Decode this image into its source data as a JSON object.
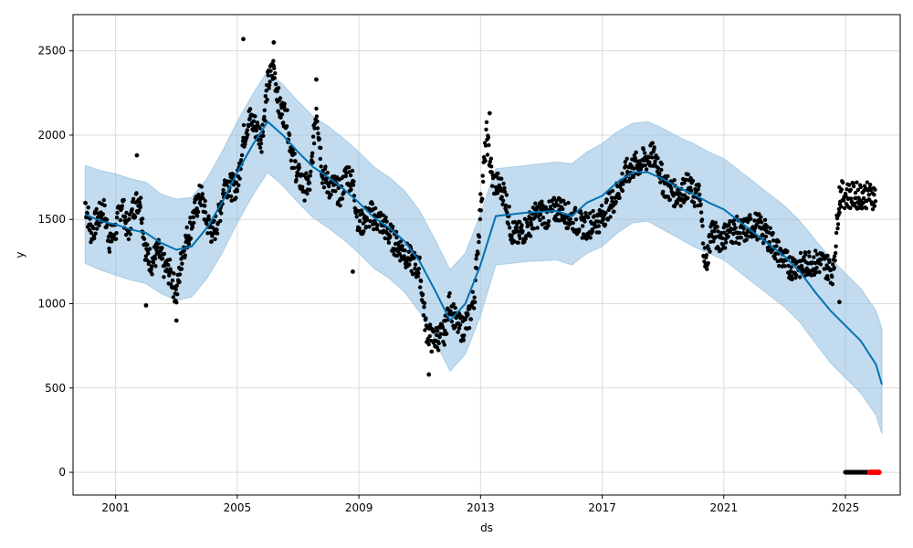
{
  "chart_data": {
    "type": "line",
    "title": "",
    "xlabel": "ds",
    "ylabel": "y",
    "xlim": [
      1999.6,
      2026.8
    ],
    "ylim": [
      -135,
      2715
    ],
    "x_ticks": [
      2001,
      2005,
      2009,
      2013,
      2017,
      2021,
      2025
    ],
    "x_tick_labels": [
      "2001",
      "2005",
      "2009",
      "2013",
      "2017",
      "2021",
      "2025"
    ],
    "y_ticks": [
      0,
      500,
      1000,
      1500,
      2000,
      2500
    ],
    "y_tick_labels": [
      "0",
      "500",
      "1000",
      "1500",
      "2000",
      "2500"
    ],
    "grid": true,
    "colors": {
      "observed": "#000000",
      "forecast_line": "#0072B2",
      "interval_fill": "#8FBEE0",
      "interval_edge": "#A8CDE6",
      "highlight": "#ff0000"
    },
    "forecast": {
      "x": [
        2000.0,
        2000.5,
        2001.0,
        2001.5,
        2002.0,
        2002.5,
        2003.0,
        2003.5,
        2004.0,
        2004.5,
        2005.0,
        2005.5,
        2006.0,
        2006.5,
        2007.0,
        2007.5,
        2008.0,
        2008.5,
        2009.0,
        2009.5,
        2010.0,
        2010.5,
        2011.0,
        2011.5,
        2012.0,
        2012.5,
        2013.0,
        2013.5,
        2014.0,
        2014.5,
        2015.0,
        2015.5,
        2016.0,
        2016.5,
        2017.0,
        2017.5,
        2018.0,
        2018.5,
        2019.0,
        2019.5,
        2020.0,
        2020.5,
        2021.0,
        2021.5,
        2022.0,
        2022.5,
        2023.0,
        2023.5,
        2024.0,
        2024.5,
        2025.0,
        2025.5,
        2026.0,
        2026.2
      ],
      "yhat": [
        1530,
        1490,
        1470,
        1440,
        1420,
        1360,
        1320,
        1340,
        1450,
        1600,
        1780,
        1940,
        2080,
        2000,
        1900,
        1810,
        1750,
        1680,
        1600,
        1510,
        1450,
        1370,
        1250,
        1080,
        900,
        1000,
        1230,
        1520,
        1530,
        1540,
        1545,
        1550,
        1520,
        1600,
        1640,
        1720,
        1780,
        1780,
        1740,
        1690,
        1650,
        1600,
        1560,
        1490,
        1420,
        1350,
        1280,
        1190,
        1070,
        960,
        870,
        780,
        640,
        520
      ],
      "upper": [
        1820,
        1790,
        1770,
        1740,
        1720,
        1650,
        1620,
        1630,
        1740,
        1900,
        2080,
        2240,
        2380,
        2300,
        2200,
        2110,
        2050,
        1980,
        1900,
        1810,
        1750,
        1670,
        1550,
        1380,
        1200,
        1300,
        1530,
        1800,
        1810,
        1820,
        1830,
        1840,
        1830,
        1900,
        1950,
        2020,
        2070,
        2080,
        2040,
        1990,
        1950,
        1900,
        1860,
        1790,
        1720,
        1650,
        1580,
        1490,
        1380,
        1270,
        1180,
        1090,
        960,
        850
      ],
      "lower": [
        1240,
        1200,
        1170,
        1140,
        1120,
        1060,
        1020,
        1040,
        1150,
        1300,
        1480,
        1640,
        1780,
        1700,
        1600,
        1510,
        1450,
        1380,
        1300,
        1210,
        1150,
        1070,
        950,
        780,
        600,
        700,
        930,
        1230,
        1240,
        1250,
        1255,
        1260,
        1230,
        1300,
        1340,
        1420,
        1480,
        1490,
        1440,
        1390,
        1340,
        1300,
        1260,
        1190,
        1120,
        1050,
        980,
        890,
        770,
        650,
        560,
        470,
        340,
        230
      ]
    },
    "observed": {
      "x": [
        2000.0,
        2000.2,
        2000.4,
        2000.6,
        2000.8,
        2001.0,
        2001.2,
        2001.4,
        2001.6,
        2001.8,
        2002.0,
        2002.2,
        2002.4,
        2002.6,
        2002.8,
        2003.0,
        2003.2,
        2003.4,
        2003.6,
        2003.8,
        2004.0,
        2004.2,
        2004.4,
        2004.6,
        2004.8,
        2005.0,
        2005.2,
        2005.4,
        2005.6,
        2005.8,
        2006.0,
        2006.2,
        2006.4,
        2006.6,
        2006.8,
        2007.0,
        2007.2,
        2007.4,
        2007.6,
        2007.8,
        2008.0,
        2008.2,
        2008.4,
        2008.6,
        2008.8,
        2009.0,
        2009.2,
        2009.4,
        2009.6,
        2009.8,
        2010.0,
        2010.2,
        2010.4,
        2010.6,
        2010.8,
        2011.0,
        2011.2,
        2011.4,
        2011.6,
        2011.8,
        2012.0,
        2012.2,
        2012.4,
        2012.6,
        2012.8,
        2013.0,
        2013.2,
        2013.4,
        2013.6,
        2013.8,
        2014.0,
        2014.2,
        2014.4,
        2014.6,
        2014.8,
        2015.0,
        2015.2,
        2015.4,
        2015.6,
        2015.8,
        2016.0,
        2016.2,
        2016.4,
        2016.6,
        2016.8,
        2017.0,
        2017.2,
        2017.4,
        2017.6,
        2017.8,
        2018.0,
        2018.2,
        2018.4,
        2018.6,
        2018.8,
        2019.0,
        2019.2,
        2019.4,
        2019.6,
        2019.8,
        2020.0,
        2020.2,
        2020.4,
        2020.6,
        2020.8,
        2021.0,
        2021.2,
        2021.4,
        2021.6,
        2021.8,
        2022.0,
        2022.2,
        2022.4,
        2022.6,
        2022.8,
        2023.0,
        2023.2,
        2023.4,
        2023.6,
        2023.8,
        2024.0,
        2024.2,
        2024.4,
        2024.6,
        2024.8,
        2025.0,
        2025.2,
        2025.4,
        2025.6,
        2025.8
      ],
      "y": [
        1600,
        1420,
        1500,
        1560,
        1380,
        1430,
        1610,
        1420,
        1580,
        1630,
        1290,
        1250,
        1310,
        1220,
        1180,
        1050,
        1310,
        1420,
        1540,
        1650,
        1490,
        1410,
        1520,
        1720,
        1690,
        1700,
        1980,
        2100,
        2050,
        1980,
        2300,
        2400,
        2150,
        2120,
        1880,
        1760,
        1690,
        1710,
        2180,
        1780,
        1700,
        1690,
        1650,
        1780,
        1720,
        1460,
        1500,
        1530,
        1500,
        1470,
        1410,
        1360,
        1320,
        1280,
        1240,
        1200,
        860,
        780,
        800,
        820,
        1010,
        880,
        850,
        900,
        1050,
        1580,
        2000,
        1720,
        1700,
        1650,
        1440,
        1400,
        1430,
        1470,
        1520,
        1540,
        1520,
        1550,
        1570,
        1530,
        1510,
        1480,
        1460,
        1470,
        1490,
        1510,
        1580,
        1620,
        1700,
        1780,
        1810,
        1830,
        1850,
        1880,
        1860,
        1720,
        1680,
        1650,
        1660,
        1700,
        1650,
        1640,
        1210,
        1450,
        1380,
        1400,
        1430,
        1440,
        1420,
        1450,
        1470,
        1450,
        1410,
        1360,
        1300,
        1250,
        1220,
        1230,
        1220,
        1250,
        1240,
        1250,
        1220,
        1190,
        1650,
        1645,
        1640,
        1642,
        1645,
        1640
      ],
      "spikes": [
        {
          "x": 2001.7,
          "y": 1880
        },
        {
          "x": 2002.0,
          "y": 990
        },
        {
          "x": 2003.0,
          "y": 900
        },
        {
          "x": 2005.2,
          "y": 2570
        },
        {
          "x": 2006.2,
          "y": 2550
        },
        {
          "x": 2007.6,
          "y": 2330
        },
        {
          "x": 2008.8,
          "y": 1190
        },
        {
          "x": 2011.3,
          "y": 580
        },
        {
          "x": 2013.3,
          "y": 2130
        },
        {
          "x": 2024.8,
          "y": 1010
        },
        {
          "x": 2024.8,
          "y": 1540
        }
      ],
      "zero_points": {
        "x_start": 2025.0,
        "x_end": 2026.0,
        "y": 0
      }
    },
    "highlight_points": {
      "x_start": 2025.8,
      "x_end": 2026.1,
      "y": 0
    }
  }
}
